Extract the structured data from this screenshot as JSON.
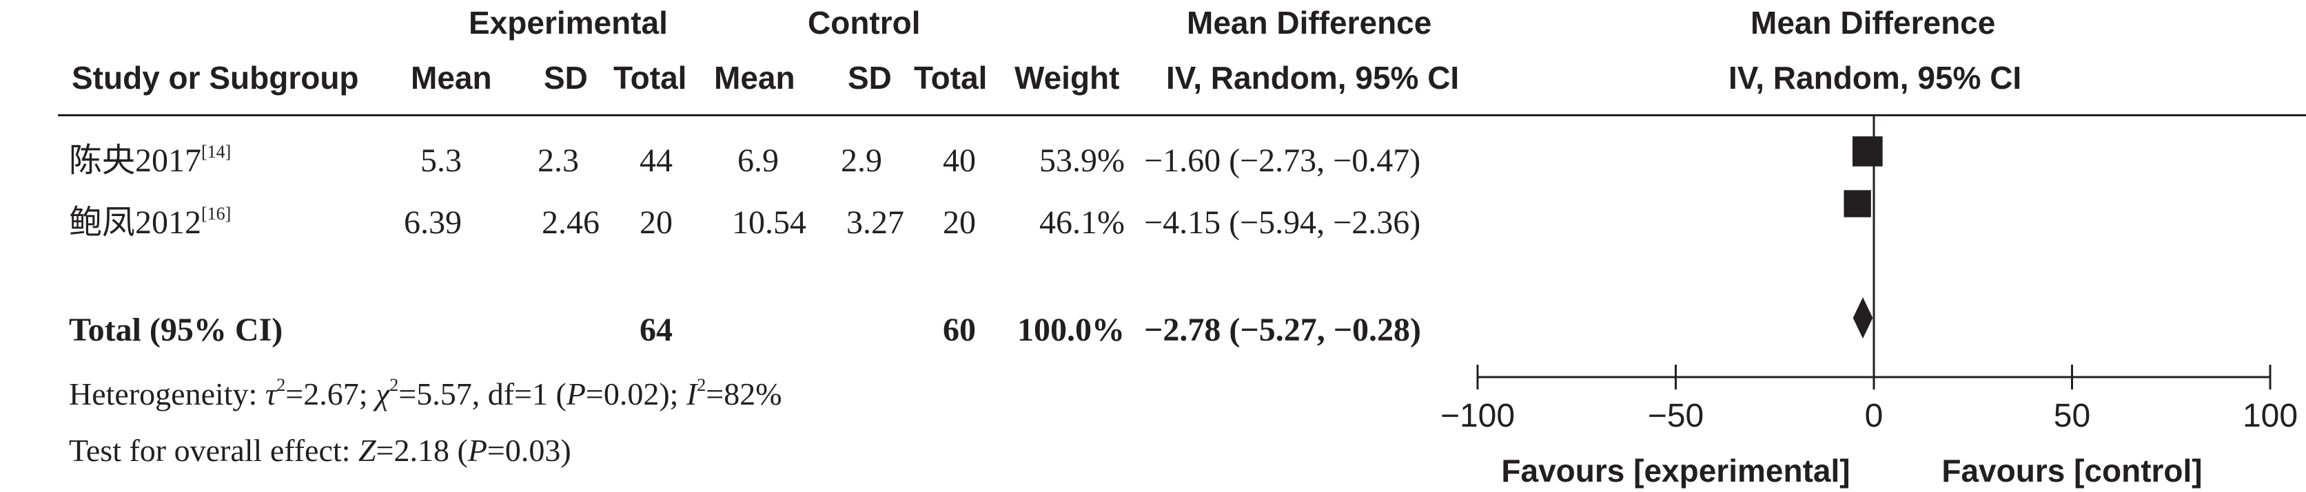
{
  "headers": {
    "experimental": "Experimental",
    "control": "Control",
    "mean_difference_left": "Mean Difference",
    "mean_difference_right": "Mean Difference",
    "study_or_subgroup": "Study or Subgroup",
    "mean_e": "Mean",
    "sd_e": "SD",
    "total_e": "Total",
    "mean_c": "Mean",
    "sd_c": "SD",
    "total_c": "Total",
    "weight": "Weight",
    "method_left": "IV, Random, 95% CI",
    "method_right": "IV, Random, 95% CI"
  },
  "studies": [
    {
      "name": "陈央2017",
      "ref": "[14]",
      "mean_e": "5.3",
      "sd_e": "2.3",
      "total_e": "44",
      "mean_c": "6.9",
      "sd_c": "2.9",
      "total_c": "40",
      "weight": "53.9%",
      "ci_text": "−1.60 (−2.73, −0.47)"
    },
    {
      "name": "鲍凤2012",
      "ref": "[16]",
      "mean_e": "6.39",
      "sd_e": "2.46",
      "total_e": "20",
      "mean_c": "10.54",
      "sd_c": "3.27",
      "total_c": "20",
      "weight": "46.1%",
      "ci_text": "−4.15 (−5.94, −2.36)"
    }
  ],
  "total": {
    "label": "Total (95% CI)",
    "total_e": "64",
    "total_c": "60",
    "weight": "100.0%",
    "ci_text": "−2.78 (−5.27, −0.28)"
  },
  "heterogeneity": {
    "prefix": "Heterogeneity: ",
    "tau_sym": "τ",
    "tau_val": "=2.67; ",
    "chi_sym": "χ",
    "chi_val": "=5.57, df=1 (",
    "p_sym": "P",
    "p_val": "=0.02); ",
    "i_sym": "I",
    "i_val": "=82%",
    "sup2": "2"
  },
  "overall": {
    "prefix": "Test for overall effect: ",
    "z_sym": "Z",
    "z_val": "=2.18 (",
    "p_sym": "P",
    "p_val": "=0.03)"
  },
  "chart_data": {
    "type": "scatter",
    "subtype": "forest",
    "xlim": [
      -100,
      100
    ],
    "ticks": [
      "−100",
      "−50",
      "0",
      "50",
      "100"
    ],
    "tick_values": [
      -100,
      -50,
      0,
      50,
      100
    ],
    "points": [
      {
        "study": "陈央2017",
        "md": -1.6,
        "lower": -2.73,
        "upper": -0.47,
        "weight": 53.9
      },
      {
        "study": "鲍凤2012",
        "md": -4.15,
        "lower": -5.94,
        "upper": -2.36,
        "weight": 46.1
      }
    ],
    "pooled": {
      "md": -2.78,
      "lower": -5.27,
      "upper": -0.28
    },
    "favours_left": "Favours [experimental]",
    "favours_right": "Favours [control]"
  }
}
